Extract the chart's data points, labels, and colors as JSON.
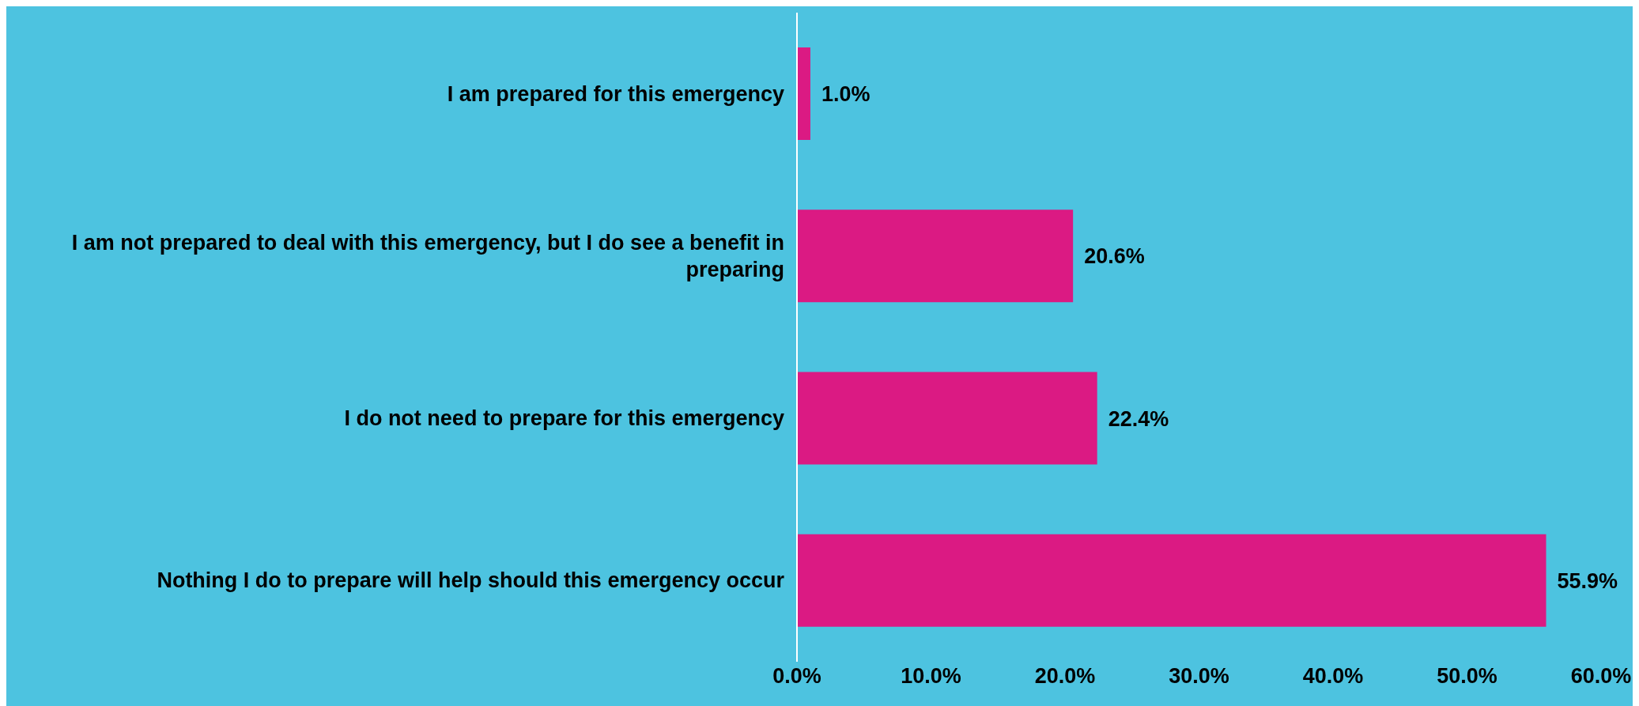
{
  "chart_data": {
    "type": "bar",
    "orientation": "horizontal",
    "categories": [
      "I am prepared for this emergency",
      "I am not prepared to deal with this emergency, but I do see a benefit in preparing",
      "I do not need to prepare for this emergency",
      "Nothing I do to prepare will help should this emergency occur"
    ],
    "values": [
      1.0,
      20.6,
      22.4,
      55.9
    ],
    "value_labels": [
      "1.0%",
      "20.6%",
      "22.4%",
      "55.9%"
    ],
    "color": "#db1a83",
    "xlim": [
      0,
      60
    ],
    "xticks": [
      {
        "value": 0,
        "label": "0.0%"
      },
      {
        "value": 10,
        "label": "10.0%"
      },
      {
        "value": 20,
        "label": "20.0%"
      },
      {
        "value": 30,
        "label": "30.0%"
      },
      {
        "value": 40,
        "label": "40.0%"
      },
      {
        "value": 50,
        "label": "50.0%"
      },
      {
        "value": 60,
        "label": "60.0%"
      }
    ],
    "grid": false
  }
}
